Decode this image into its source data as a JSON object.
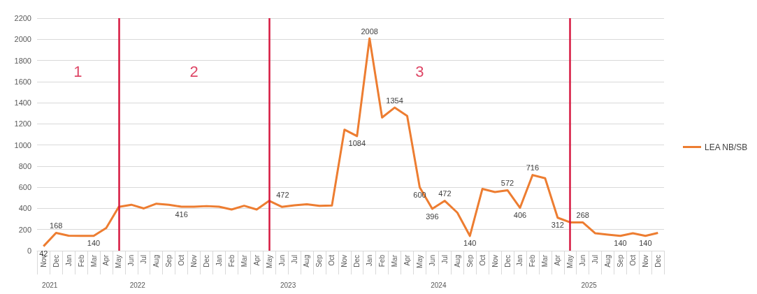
{
  "chart_data": {
    "type": "line",
    "x": [
      "2021-11",
      "2021-12",
      "2022-01",
      "2022-02",
      "2022-03",
      "2022-04",
      "2022-05",
      "2022-06",
      "2022-07",
      "2022-08",
      "2022-09",
      "2022-10",
      "2022-11",
      "2022-12",
      "2023-01",
      "2023-02",
      "2023-03",
      "2023-04",
      "2023-05",
      "2023-06",
      "2023-07",
      "2023-08",
      "2023-09",
      "2023-10",
      "2023-11",
      "2023-12",
      "2024-01",
      "2024-02",
      "2024-03",
      "2024-04",
      "2024-05",
      "2024-06",
      "2024-07",
      "2024-08",
      "2024-09",
      "2024-10",
      "2024-11",
      "2024-12",
      "2025-01",
      "2025-02",
      "2025-03",
      "2025-04",
      "2025-05",
      "2025-06",
      "2025-07",
      "2025-08",
      "2025-09",
      "2025-10",
      "2025-11",
      "2025-12"
    ],
    "xlim": [
      "2021-10-16",
      "2025-12-16"
    ],
    "xticks": [
      {
        "value": "2021-11",
        "label": "Nov"
      },
      {
        "value": "2021-12",
        "label": "Dec"
      },
      {
        "value": "2022-01",
        "label": "Jan"
      },
      {
        "value": "2022-02",
        "label": "Feb"
      },
      {
        "value": "2022-03",
        "label": "Mar"
      },
      {
        "value": "2022-04",
        "label": "Apr"
      },
      {
        "value": "2022-05",
        "label": "May"
      },
      {
        "value": "2022-06",
        "label": "Jun"
      },
      {
        "value": "2022-07",
        "label": "Jul"
      },
      {
        "value": "2022-08",
        "label": "Aug"
      },
      {
        "value": "2022-09",
        "label": "Sep"
      },
      {
        "value": "2022-10",
        "label": "Oct"
      },
      {
        "value": "2022-11",
        "label": "Nov"
      },
      {
        "value": "2022-12",
        "label": "Dec"
      },
      {
        "value": "2023-01",
        "label": "Jan"
      },
      {
        "value": "2023-02",
        "label": "Feb"
      },
      {
        "value": "2023-03",
        "label": "Mar"
      },
      {
        "value": "2023-04",
        "label": "Apr"
      },
      {
        "value": "2023-05",
        "label": "May"
      },
      {
        "value": "2023-06",
        "label": "Jun"
      },
      {
        "value": "2023-07",
        "label": "Jul"
      },
      {
        "value": "2023-08",
        "label": "Aug"
      },
      {
        "value": "2023-09",
        "label": "Sep"
      },
      {
        "value": "2023-10",
        "label": "Oct"
      },
      {
        "value": "2023-11",
        "label": "Nov"
      },
      {
        "value": "2023-12",
        "label": "Dec"
      },
      {
        "value": "2024-01",
        "label": "Jan"
      },
      {
        "value": "2024-02",
        "label": "Feb"
      },
      {
        "value": "2024-03",
        "label": "Mar"
      },
      {
        "value": "2024-04",
        "label": "Apr"
      },
      {
        "value": "2024-05",
        "label": "May"
      },
      {
        "value": "2024-06",
        "label": "Jun"
      },
      {
        "value": "2024-07",
        "label": "Jul"
      },
      {
        "value": "2024-08",
        "label": "Aug"
      },
      {
        "value": "2024-09",
        "label": "Sep"
      },
      {
        "value": "2024-10",
        "label": "Oct"
      },
      {
        "value": "2024-11",
        "label": "Nov"
      },
      {
        "value": "2024-12",
        "label": "Dec"
      },
      {
        "value": "2025-01",
        "label": "Jan"
      },
      {
        "value": "2025-02",
        "label": "Feb"
      },
      {
        "value": "2025-03",
        "label": "Mar"
      },
      {
        "value": "2025-04",
        "label": "Apr"
      },
      {
        "value": "2025-05",
        "label": "May"
      },
      {
        "value": "2025-06",
        "label": "Jun"
      },
      {
        "value": "2025-07",
        "label": "Jul"
      },
      {
        "value": "2025-08",
        "label": "Aug"
      },
      {
        "value": "2025-09",
        "label": "Sep"
      },
      {
        "value": "2025-10",
        "label": "Oct"
      },
      {
        "value": "2025-11",
        "label": "Nov"
      },
      {
        "value": "2025-12",
        "label": "Dec"
      }
    ],
    "series": [
      {
        "name": "LEA NB/SB",
        "color": "#ed7d31",
        "values": [
          42,
          168,
          142,
          140,
          140,
          215,
          415,
          435,
          400,
          445,
          435,
          416,
          416,
          422,
          416,
          390,
          425,
          390,
          472,
          415,
          430,
          440,
          425,
          428,
          1145,
          1084,
          2008,
          1260,
          1354,
          1275,
          600,
          396,
          472,
          360,
          140,
          585,
          555,
          572,
          406,
          716,
          685,
          312,
          268,
          268,
          165,
          152,
          140,
          165,
          140,
          168
        ],
        "value_labels": [
          "42",
          "168",
          null,
          null,
          "140",
          null,
          null,
          null,
          null,
          null,
          null,
          "416",
          null,
          null,
          null,
          null,
          null,
          null,
          "472",
          null,
          null,
          null,
          null,
          null,
          null,
          "1084",
          "2008",
          null,
          "1354",
          null,
          "600",
          "396",
          "472",
          null,
          "140",
          null,
          null,
          "572",
          "406",
          "716",
          null,
          "312",
          null,
          "268",
          null,
          null,
          "140",
          null,
          "140",
          null
        ]
      }
    ],
    "ylim": [
      0,
      2200
    ],
    "yticks": [
      0,
      200,
      400,
      600,
      800,
      1000,
      1200,
      1400,
      1600,
      1800,
      2000,
      2200
    ],
    "grid": "y",
    "legend": "right",
    "marker": "none",
    "line_style": "solid",
    "ref_lines": [
      {
        "axis": "x",
        "value": "2022-05",
        "label": "1",
        "color": "#d6173f"
      },
      {
        "axis": "x",
        "value": "2023-05",
        "label": "2",
        "color": "#d6173f"
      },
      {
        "axis": "x",
        "value": "2025-05",
        "label": "3",
        "color": "#d6173f"
      }
    ],
    "annotations": [
      "2021",
      "2022",
      "2023",
      "2024",
      "2025"
    ]
  }
}
